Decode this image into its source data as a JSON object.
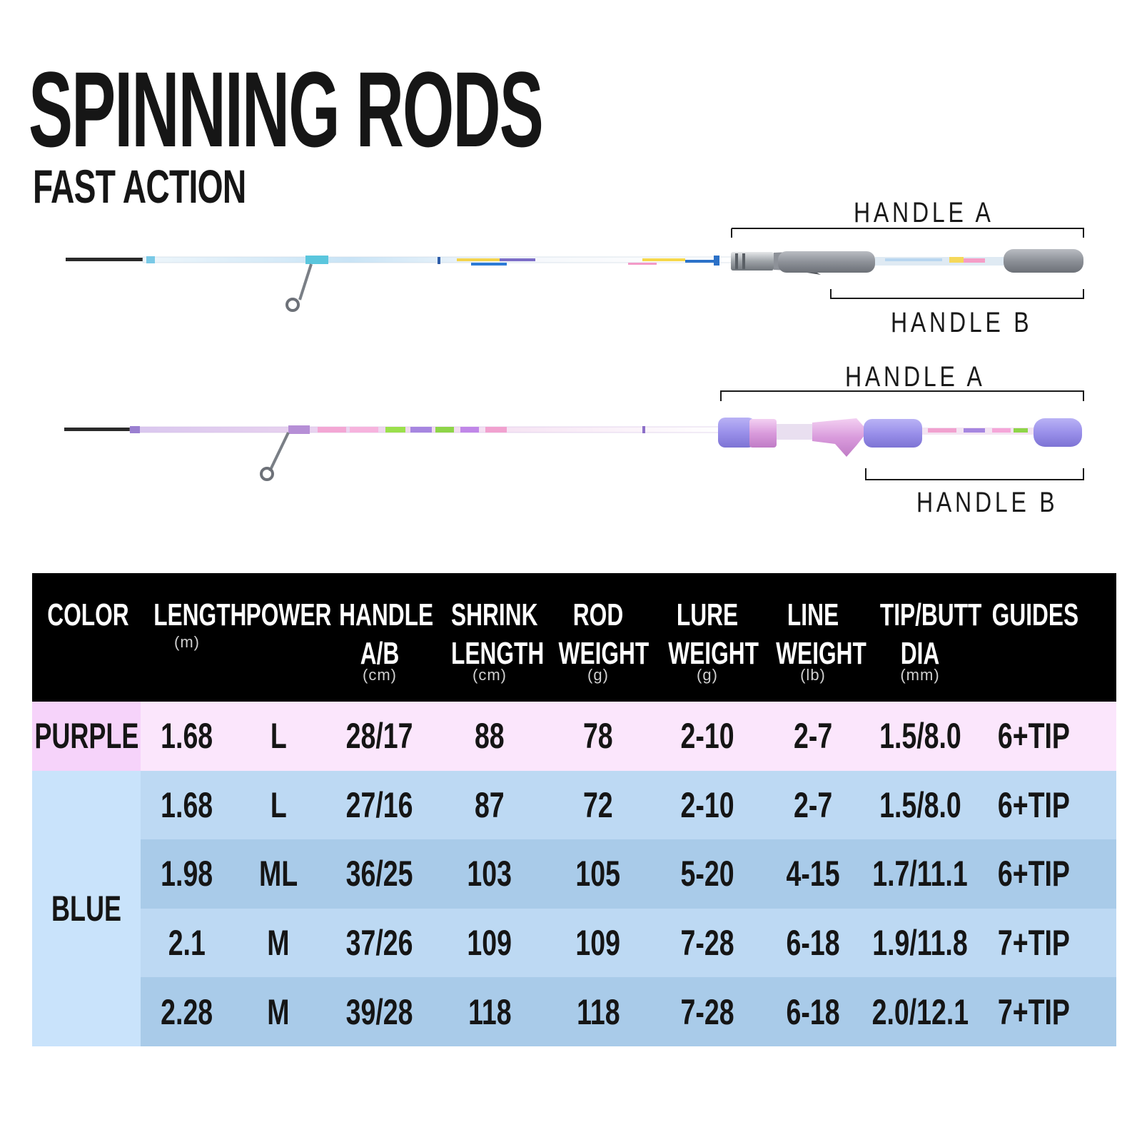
{
  "title": "SPINNING RODS",
  "subtitle": "FAST ACTION",
  "rod_labels": {
    "top_handle_a": "HANDLE A",
    "top_handle_b": "HANDLE B",
    "bottom_handle_a": "HANDLE A",
    "bottom_handle_b": "HANDLE B"
  },
  "colors": {
    "header_bg": "#000000",
    "purple_color_cell": "#f6d3fa",
    "purple_row": "#fbe6fc",
    "blue_color_cell": "#c9e3fb",
    "blue_row_light": "#bdd9f3",
    "blue_row_dark": "#a9cbe9"
  },
  "table": {
    "headers": [
      {
        "label": "COLOR",
        "unit": ""
      },
      {
        "label": "LENGTH",
        "unit": "(m)"
      },
      {
        "label": "POWER",
        "unit": ""
      },
      {
        "label": "HANDLE\nA/B",
        "unit": "(cm)"
      },
      {
        "label": "SHRINK\nLENGTH",
        "unit": "(cm)"
      },
      {
        "label": "ROD\nWEIGHT",
        "unit": "(g)"
      },
      {
        "label": "LURE\nWEIGHT",
        "unit": "(g)"
      },
      {
        "label": "LINE\nWEIGHT",
        "unit": "(lb)"
      },
      {
        "label": "TIP/BUTT\nDIA",
        "unit": "(mm)"
      },
      {
        "label": "GUIDES",
        "unit": ""
      }
    ],
    "groups": [
      {
        "color": "PURPLE",
        "rows": [
          [
            "1.68",
            "L",
            "28/17",
            "88",
            "78",
            "2-10",
            "2-7",
            "1.5/8.0",
            "6+TIP"
          ]
        ]
      },
      {
        "color": "BLUE",
        "rows": [
          [
            "1.68",
            "L",
            "27/16",
            "87",
            "72",
            "2-10",
            "2-7",
            "1.5/8.0",
            "6+TIP"
          ],
          [
            "1.98",
            "ML",
            "36/25",
            "103",
            "105",
            "5-20",
            "4-15",
            "1.7/11.1",
            "6+TIP"
          ],
          [
            "2.1",
            "M",
            "37/26",
            "109",
            "109",
            "7-28",
            "6-18",
            "1.9/11.8",
            "7+TIP"
          ],
          [
            "2.28",
            "M",
            "39/28",
            "118",
            "118",
            "7-28",
            "6-18",
            "2.0/12.1",
            "7+TIP"
          ]
        ]
      }
    ]
  }
}
